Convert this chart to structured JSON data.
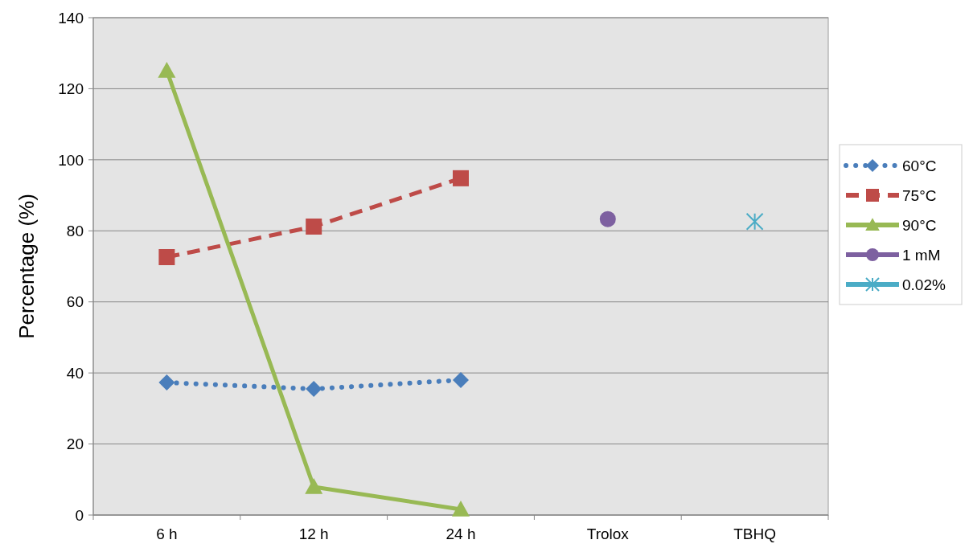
{
  "chart_data": {
    "type": "line",
    "ylabel": "Percentage (%)",
    "categories": [
      "6 h",
      "12 h",
      "24 h",
      "Trolox",
      "TBHQ"
    ],
    "ylim": [
      0,
      140
    ],
    "yticks": [
      0,
      20,
      40,
      60,
      80,
      100,
      120,
      140
    ],
    "grid": "y",
    "legend": "right",
    "series": [
      {
        "name": "60°C",
        "color": "#4a7ebb",
        "marker": "diamond",
        "line_style": "dotted",
        "values": [
          37.3,
          35.5,
          38.0,
          null,
          null
        ]
      },
      {
        "name": "75°C",
        "color": "#be4b48",
        "marker": "square",
        "line_style": "dashed",
        "values": [
          72.6,
          81.2,
          94.8,
          null,
          null
        ]
      },
      {
        "name": "90°C",
        "color": "#98b954",
        "marker": "triangle",
        "line_style": "solid",
        "values": [
          125.1,
          7.9,
          1.6,
          null,
          null
        ]
      },
      {
        "name": "1 mM",
        "color": "#7d60a0",
        "marker": "circle",
        "line_style": "solid",
        "values": [
          null,
          null,
          null,
          83.3,
          null
        ]
      },
      {
        "name": "0.02%",
        "color": "#4bacc6",
        "marker": "cross",
        "line_style": "solid",
        "values": [
          null,
          null,
          null,
          null,
          82.6
        ]
      }
    ]
  }
}
